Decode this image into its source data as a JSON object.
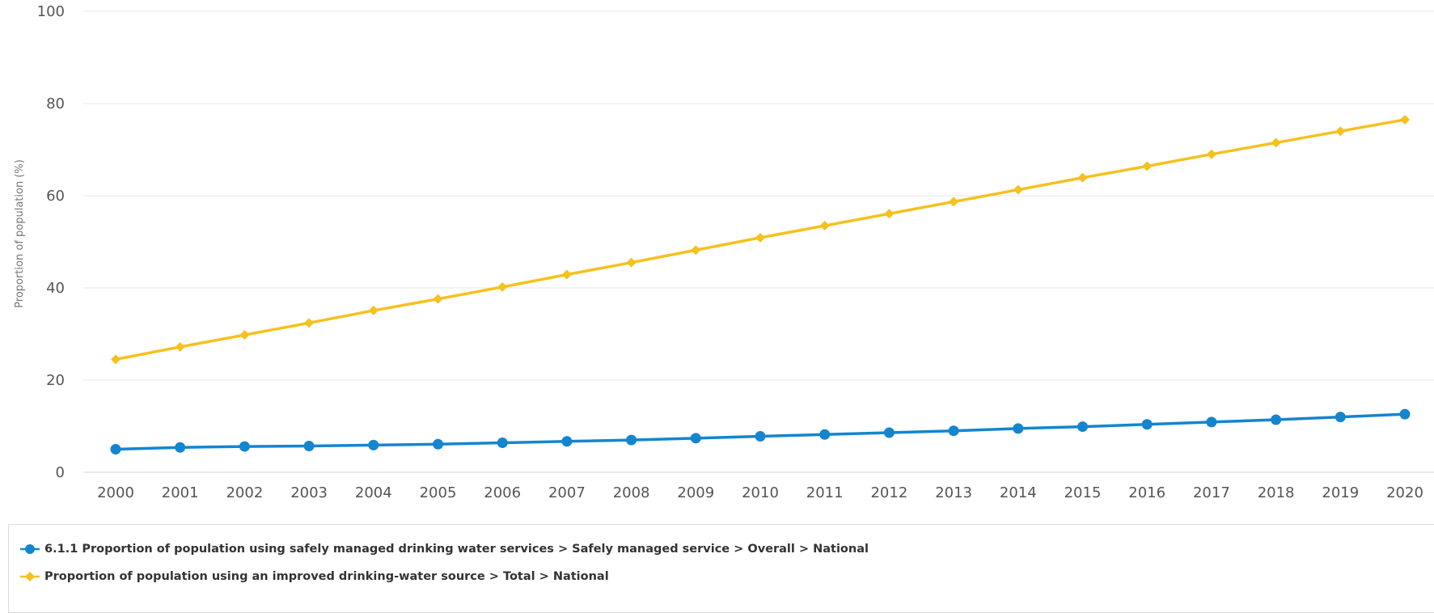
{
  "chart_data": {
    "type": "line",
    "title": "",
    "xlabel": "",
    "ylabel": "Proportion of population (%)",
    "ylim": [
      0,
      100
    ],
    "yticks": [
      0,
      20,
      40,
      60,
      80,
      100
    ],
    "grid": true,
    "legend_position": "bottom",
    "categories": [
      "2000",
      "2001",
      "2002",
      "2003",
      "2004",
      "2005",
      "2006",
      "2007",
      "2008",
      "2009",
      "2010",
      "2011",
      "2012",
      "2013",
      "2014",
      "2015",
      "2016",
      "2017",
      "2018",
      "2019",
      "2020"
    ],
    "series": [
      {
        "name": "6.1.1 Proportion of population using safely managed drinking water services > Safely managed service > Overall > National",
        "color": "#1485cf",
        "marker": "circle",
        "values": [
          5.0,
          5.4,
          5.6,
          5.7,
          5.9,
          6.1,
          6.4,
          6.7,
          7.0,
          7.4,
          7.8,
          8.2,
          8.6,
          9.0,
          9.5,
          9.9,
          10.4,
          10.9,
          11.4,
          12.0,
          12.6
        ]
      },
      {
        "name": "Proportion of population using an improved drinking-water source > Total > National",
        "color": "#f5c11e",
        "marker": "diamond",
        "values": [
          24.5,
          27.2,
          29.8,
          32.4,
          35.1,
          37.6,
          40.2,
          42.9,
          45.5,
          48.2,
          50.9,
          53.5,
          56.1,
          58.7,
          61.3,
          63.9,
          66.4,
          69.0,
          71.5,
          74.0,
          76.5
        ]
      }
    ]
  }
}
